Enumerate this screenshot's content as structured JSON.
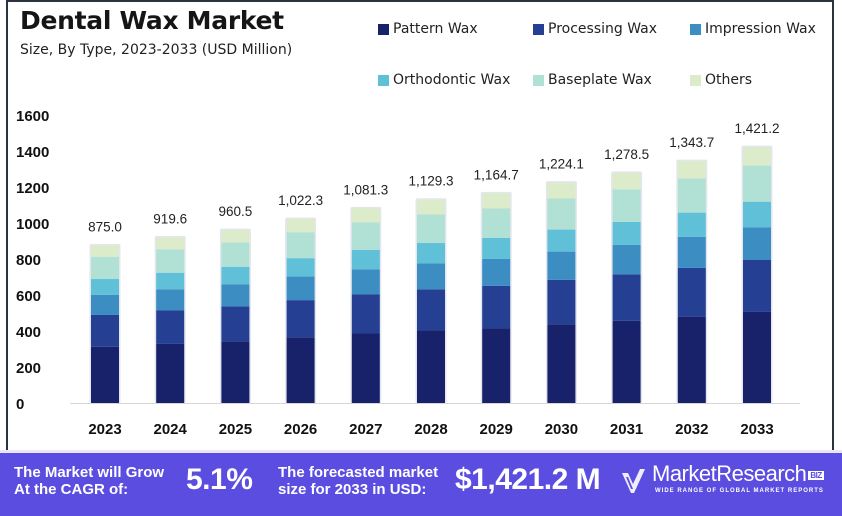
{
  "header": {
    "title": "Dental Wax Market",
    "subtitle": "Size, By Type, 2023-2033 (USD Million)"
  },
  "chart_data": {
    "type": "bar",
    "stacked": true,
    "title": "Dental Wax Market",
    "subtitle": "Size, By Type, 2023-2033 (USD Million)",
    "xlabel": "",
    "ylabel": "",
    "ylim": [
      0,
      1600
    ],
    "yticks": [
      0,
      200,
      400,
      600,
      800,
      1000,
      1200,
      1400,
      1600
    ],
    "grid": false,
    "legend_position": "top-right",
    "categories": [
      "2023",
      "2024",
      "2025",
      "2026",
      "2027",
      "2028",
      "2029",
      "2030",
      "2031",
      "2032",
      "2033"
    ],
    "totals": [
      875.0,
      919.6,
      960.5,
      1022.3,
      1081.3,
      1129.3,
      1164.7,
      1224.1,
      1278.5,
      1343.7,
      1421.2
    ],
    "total_labels": [
      "875.0",
      "919.6",
      "960.5",
      "1,022.3",
      "1,081.3",
      "1,129.3",
      "1,164.7",
      "1,224.1",
      "1,278.5",
      "1,343.7",
      "1,421.2"
    ],
    "series": [
      {
        "name": "Pattern Wax",
        "color": "#17226b",
        "values": [
          312.4,
          328.3,
          342.9,
          365.0,
          386.0,
          403.2,
          415.8,
          437.0,
          456.4,
          479.7,
          507.4
        ]
      },
      {
        "name": "Processing Wax",
        "color": "#253f93",
        "values": [
          176.8,
          185.8,
          194.0,
          206.5,
          218.4,
          228.1,
          235.3,
          247.3,
          258.3,
          271.4,
          287.1
        ]
      },
      {
        "name": "Impression Wax",
        "color": "#3b8dc2",
        "values": [
          112.0,
          117.7,
          122.9,
          130.9,
          138.4,
          144.5,
          149.1,
          156.7,
          163.6,
          172.0,
          181.9
        ]
      },
      {
        "name": "Orthodontic Wax",
        "color": "#5fc0d8",
        "values": [
          87.5,
          92.0,
          96.1,
          102.2,
          108.1,
          112.9,
          116.5,
          122.4,
          127.9,
          134.4,
          142.1
        ]
      },
      {
        "name": "Baseplate Wax",
        "color": "#b1e0d5",
        "values": [
          123.4,
          129.7,
          135.4,
          144.1,
          152.5,
          159.2,
          164.2,
          172.6,
          180.3,
          189.5,
          200.4
        ]
      },
      {
        "name": "Others",
        "color": "#dcebc9",
        "values": [
          62.9,
          66.1,
          69.2,
          73.6,
          77.9,
          81.4,
          83.8,
          88.1,
          92.0,
          96.7,
          102.3
        ]
      }
    ]
  },
  "banner": {
    "cagr_label_line1": "The Market will Grow",
    "cagr_label_line2": "At the CAGR of:",
    "cagr_value": "5.1%",
    "forecast_label_line1": "The forecasted market",
    "forecast_label_line2": "size for 2033 in USD:",
    "forecast_value": "$1,421.2 M",
    "logo_name": "MarketResearch",
    "logo_badge": "BIZ",
    "logo_tagline": "WIDE RANGE OF GLOBAL MARKET REPORTS",
    "background_color": "#5a4de0"
  }
}
